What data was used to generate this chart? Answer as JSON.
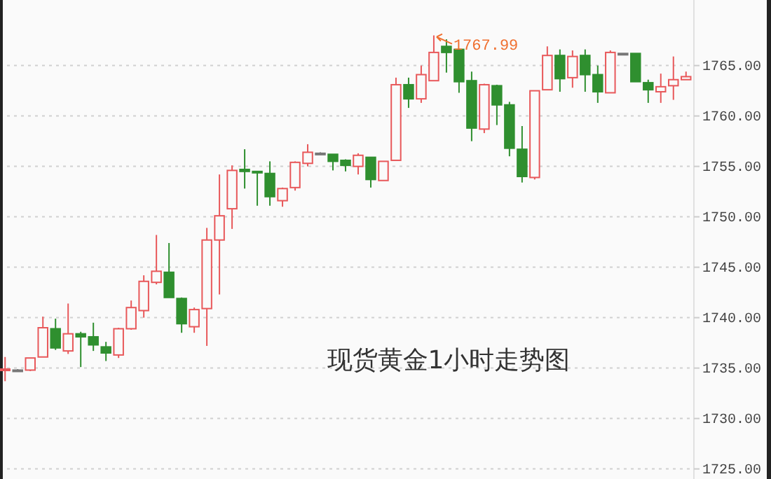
{
  "chart_data": {
    "type": "candlestick",
    "title": "现货黄金1小时走势图",
    "categories": [
      null,
      null,
      null,
      null,
      null,
      null,
      null,
      null,
      null,
      null,
      null,
      null,
      null,
      null,
      null,
      null,
      null,
      null,
      null,
      null,
      null,
      null,
      null,
      null,
      null,
      null,
      null,
      null,
      null,
      null,
      null,
      null,
      null,
      null,
      null,
      null,
      null,
      null,
      null,
      null,
      null,
      null,
      null,
      null,
      null,
      null,
      null,
      null,
      null,
      null,
      null,
      null,
      null,
      null,
      null
    ],
    "ohlc": [
      [
        1734.8,
        1736.1,
        1733.7,
        1734.9
      ],
      [
        1734.8,
        1734.9,
        1734.7,
        1734.8
      ],
      [
        1734.8,
        1736.0,
        1734.7,
        1736.0
      ],
      [
        1736.1,
        1740.1,
        1736.1,
        1739.0
      ],
      [
        1738.9,
        1739.9,
        1736.8,
        1737.0
      ],
      [
        1736.7,
        1741.4,
        1736.4,
        1738.4
      ],
      [
        1738.4,
        1738.6,
        1735.1,
        1738.1
      ],
      [
        1738.1,
        1739.5,
        1736.7,
        1737.3
      ],
      [
        1737.1,
        1737.6,
        1735.7,
        1736.5
      ],
      [
        1736.3,
        1739.0,
        1736.0,
        1738.9
      ],
      [
        1738.9,
        1741.7,
        1738.8,
        1741.0
      ],
      [
        1740.7,
        1744.2,
        1740.0,
        1743.6
      ],
      [
        1743.5,
        1748.2,
        1743.3,
        1744.6
      ],
      [
        1744.5,
        1747.4,
        1742.0,
        1742.0
      ],
      [
        1741.9,
        1742.0,
        1738.5,
        1739.4
      ],
      [
        1739.1,
        1741.0,
        1738.5,
        1740.8
      ],
      [
        1740.9,
        1748.9,
        1737.2,
        1747.7
      ],
      [
        1747.7,
        1754.2,
        1742.3,
        1750.1
      ],
      [
        1750.8,
        1755.1,
        1748.8,
        1754.6
      ],
      [
        1754.7,
        1756.7,
        1752.8,
        1754.5
      ],
      [
        1754.5,
        1754.5,
        1751.1,
        1754.4
      ],
      [
        1754.3,
        1755.5,
        1751.1,
        1752.0
      ],
      [
        1751.6,
        1752.9,
        1751.0,
        1752.8
      ],
      [
        1752.9,
        1755.5,
        1752.6,
        1755.4
      ],
      [
        1755.3,
        1757.2,
        1755.0,
        1756.4
      ],
      [
        1756.3,
        1756.4,
        1756.2,
        1756.3
      ],
      [
        1756.2,
        1756.2,
        1754.6,
        1755.5
      ],
      [
        1755.6,
        1755.7,
        1754.5,
        1755.1
      ],
      [
        1755.0,
        1756.3,
        1754.2,
        1756.1
      ],
      [
        1755.9,
        1755.9,
        1752.9,
        1753.7
      ],
      [
        1753.6,
        1755.5,
        1753.6,
        1755.5
      ],
      [
        1755.6,
        1763.8,
        1755.6,
        1763.1
      ],
      [
        1763.1,
        1763.8,
        1760.8,
        1761.7
      ],
      [
        1761.7,
        1765.0,
        1761.3,
        1764.1
      ],
      [
        1763.5,
        1767.99,
        1763.5,
        1766.3
      ],
      [
        1766.9,
        1767.6,
        1764.3,
        1766.3
      ],
      [
        1766.6,
        1766.6,
        1762.3,
        1763.4
      ],
      [
        1763.5,
        1764.4,
        1757.5,
        1758.8
      ],
      [
        1758.7,
        1763.2,
        1758.3,
        1763.1
      ],
      [
        1763.0,
        1763.1,
        1759.1,
        1761.1
      ],
      [
        1761.1,
        1761.4,
        1756.0,
        1756.8
      ],
      [
        1756.7,
        1759.0,
        1753.4,
        1754.0
      ],
      [
        1753.9,
        1762.5,
        1753.7,
        1762.5
      ],
      [
        1762.6,
        1766.9,
        1762.6,
        1766.0
      ],
      [
        1766.0,
        1766.6,
        1762.4,
        1763.7
      ],
      [
        1763.8,
        1766.5,
        1762.8,
        1765.9
      ],
      [
        1766.0,
        1766.6,
        1762.4,
        1764.1
      ],
      [
        1764.1,
        1765.0,
        1761.3,
        1762.4
      ],
      [
        1762.3,
        1766.5,
        1762.3,
        1766.3
      ],
      [
        1766.2,
        1766.2,
        1766.2,
        1766.2
      ],
      [
        1766.2,
        1766.2,
        1763.4,
        1763.4
      ],
      [
        1763.3,
        1763.6,
        1761.3,
        1762.6
      ],
      [
        1762.4,
        1764.2,
        1761.3,
        1762.9
      ],
      [
        1763.0,
        1765.9,
        1761.6,
        1763.6
      ],
      [
        1763.6,
        1764.4,
        1763.6,
        1763.9
      ]
    ],
    "ylim": [
      1724,
      1771.5
    ],
    "yticks": [
      {
        "value": 1725,
        "label": "1725.00"
      },
      {
        "value": 1730,
        "label": "1730.00"
      },
      {
        "value": 1735,
        "label": "1735.00"
      },
      {
        "value": 1740,
        "label": "1740.00"
      },
      {
        "value": 1745,
        "label": "1745.00"
      },
      {
        "value": 1750,
        "label": "1750.00"
      },
      {
        "value": 1755,
        "label": "1755.00"
      },
      {
        "value": 1760,
        "label": "1760.00"
      },
      {
        "value": 1765,
        "label": "1765.00"
      }
    ],
    "grid": "y",
    "tick_labels": "y",
    "annotations": [
      "1767.99"
    ]
  }
}
